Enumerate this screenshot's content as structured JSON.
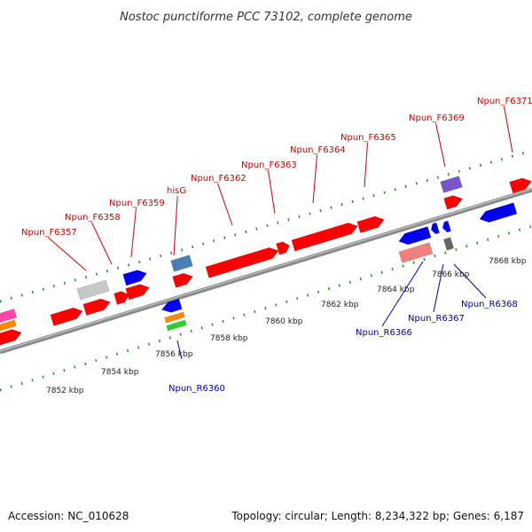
{
  "title": "Nostoc punctiforme PCC 73102, complete genome",
  "footer": {
    "accession": "Accession: NC_010628",
    "summary": "Topology: circular; Length: 8,234,322 bp; Genes: 6,187"
  },
  "colors": {
    "background": "#ffffff",
    "backbone": "#8a8a8a",
    "tick_dots": "#2a8a2a",
    "forward_label": "#cc0000",
    "reverse_label": "#0000aa",
    "forward_gene": "#ff0000",
    "reverse_gene": "#0000ee"
  },
  "forward_labels": [
    "Npun_F6357",
    "Npun_F6358",
    "Npun_F6359",
    "hisG",
    "Npun_F6362",
    "Npun_F6363",
    "Npun_F6364",
    "Npun_F6365",
    "Npun_F6369",
    "Npun_F6371"
  ],
  "reverse_labels": [
    "Npun_R6360",
    "Npun_R6366",
    "Npun_R6367",
    "Npun_R6368"
  ],
  "scale_ticks": [
    "7852 kbp",
    "7854 kbp",
    "7856 kbp",
    "7858 kbp",
    "7860 kbp",
    "7862 kbp",
    "7864 kbp",
    "7866 kbp",
    "7868 kbp"
  ]
}
